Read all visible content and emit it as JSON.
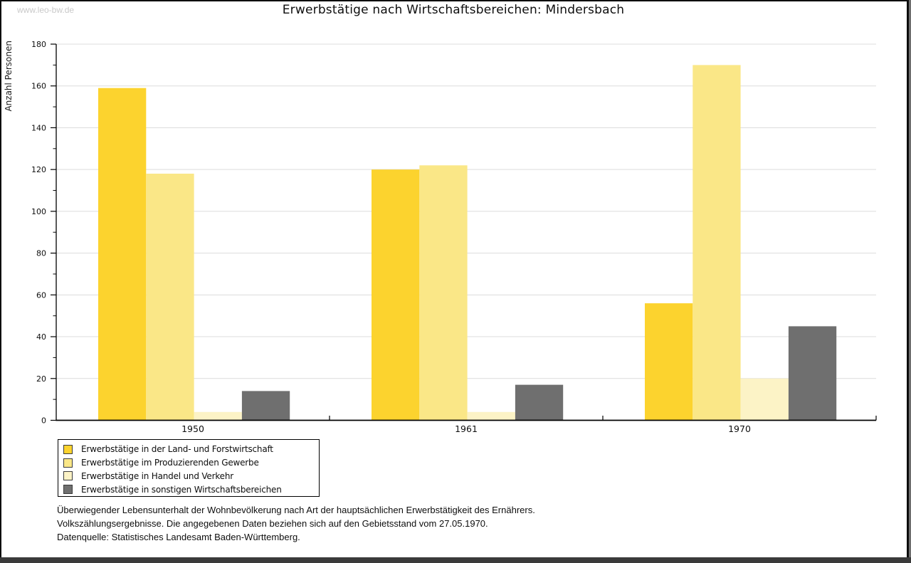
{
  "watermark": "www.leo-bw.de",
  "title": "Erwerbstätige nach Wirtschaftsbereichen: Mindersbach",
  "chart_data": {
    "type": "bar",
    "title": "Erwerbstätige nach Wirtschaftsbereichen: Mindersbach",
    "xlabel": "",
    "ylabel": "Anzahl Personen",
    "categories": [
      "1950",
      "1961",
      "1970"
    ],
    "series": [
      {
        "name": "Erwerbstätige in der Land- und Forstwirtschaft",
        "color": "#fcd32e",
        "values": [
          159,
          120,
          56
        ]
      },
      {
        "name": "Erwerbstätige im Produzierenden Gewerbe",
        "color": "#fae787",
        "values": [
          118,
          122,
          170
        ]
      },
      {
        "name": "Erwerbstätige in Handel und Verkehr",
        "color": "#fcf3c6",
        "values": [
          4,
          4,
          20
        ]
      },
      {
        "name": "Erwerbstätige in sonstigen Wirtschaftsbereichen",
        "color": "#6f6f6f",
        "values": [
          14,
          17,
          45
        ]
      }
    ],
    "ylim": [
      0,
      180
    ],
    "ytick_step": 20,
    "minor_tick_step": 10,
    "grid": true,
    "gridline_color": "#dcdcdc",
    "axis_color": "#000000",
    "legend_position": "bottom-left"
  },
  "footnote": {
    "line1": "Überwiegender Lebensunterhalt der Wohnbevölkerung nach Art der hauptsächlichen Erwerbstätigkeit des Ernährers.",
    "line2": "Volkszählungsergebnisse. Die angegebenen Daten beziehen sich auf den Gebietsstand vom 27.05.1970.",
    "source": "Datenquelle: Statistisches Landesamt Baden-Württemberg."
  }
}
